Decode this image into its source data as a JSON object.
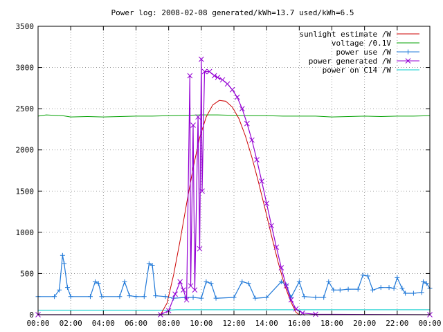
{
  "chart_data": {
    "type": "line",
    "title": "Power log: 2008-02-08 generated/kWh=13.7 used/kWh=6.5",
    "xlabel": "",
    "ylabel": "",
    "xlim": [
      "00:00",
      "24:00"
    ],
    "ylim": [
      0,
      3500
    ],
    "x_ticks": [
      "00:00",
      "02:00",
      "04:00",
      "06:00",
      "08:00",
      "10:00",
      "12:00",
      "14:00",
      "16:00",
      "18:00",
      "20:00",
      "22:00",
      "00:00"
    ],
    "y_ticks": [
      "0",
      "500",
      "1000",
      "1500",
      "2000",
      "2500",
      "3000",
      "3500"
    ],
    "grid": true,
    "legend_position": "top-right",
    "series": [
      {
        "name": "sunlight estimate /W",
        "color": "#cc0000",
        "marker": "none",
        "points": [
          [
            0,
            0
          ],
          [
            7.5,
            0
          ],
          [
            7.9,
            140
          ],
          [
            8.3,
            480
          ],
          [
            8.7,
            900
          ],
          [
            9.1,
            1350
          ],
          [
            9.5,
            1780
          ],
          [
            9.9,
            2150
          ],
          [
            10.3,
            2400
          ],
          [
            10.7,
            2545
          ],
          [
            11.1,
            2600
          ],
          [
            11.5,
            2590
          ],
          [
            11.9,
            2520
          ],
          [
            12.3,
            2380
          ],
          [
            12.7,
            2170
          ],
          [
            13.1,
            1910
          ],
          [
            13.5,
            1610
          ],
          [
            13.9,
            1290
          ],
          [
            14.3,
            960
          ],
          [
            14.7,
            640
          ],
          [
            15.1,
            360
          ],
          [
            15.5,
            150
          ],
          [
            15.8,
            30
          ],
          [
            16.0,
            0
          ],
          [
            24,
            0
          ]
        ]
      },
      {
        "name": "voltage /0.1V",
        "color": "#00a000",
        "marker": "none",
        "points": [
          [
            0,
            2410
          ],
          [
            0.5,
            2425
          ],
          [
            1.0,
            2420
          ],
          [
            1.5,
            2415
          ],
          [
            2.0,
            2400
          ],
          [
            3.0,
            2405
          ],
          [
            4.0,
            2400
          ],
          [
            5.0,
            2405
          ],
          [
            6.0,
            2410
          ],
          [
            7.0,
            2410
          ],
          [
            8.0,
            2415
          ],
          [
            9.0,
            2420
          ],
          [
            10.0,
            2425
          ],
          [
            11.0,
            2425
          ],
          [
            12.0,
            2420
          ],
          [
            13.0,
            2415
          ],
          [
            14.0,
            2415
          ],
          [
            15.0,
            2410
          ],
          [
            16.0,
            2410
          ],
          [
            17.0,
            2410
          ],
          [
            18.0,
            2400
          ],
          [
            19.0,
            2405
          ],
          [
            20.0,
            2410
          ],
          [
            21.0,
            2405
          ],
          [
            22.0,
            2410
          ],
          [
            23.0,
            2410
          ],
          [
            24.0,
            2415
          ]
        ]
      },
      {
        "name": "power use /W",
        "color": "#1f78d8",
        "marker": "plus",
        "points": [
          [
            0,
            220
          ],
          [
            1.0,
            220
          ],
          [
            1.3,
            300
          ],
          [
            1.5,
            720
          ],
          [
            1.6,
            620
          ],
          [
            1.8,
            330
          ],
          [
            2.0,
            220
          ],
          [
            3.2,
            220
          ],
          [
            3.5,
            400
          ],
          [
            3.7,
            380
          ],
          [
            3.9,
            220
          ],
          [
            5.0,
            220
          ],
          [
            5.3,
            400
          ],
          [
            5.6,
            230
          ],
          [
            6.0,
            220
          ],
          [
            6.5,
            220
          ],
          [
            6.8,
            620
          ],
          [
            7.0,
            600
          ],
          [
            7.2,
            230
          ],
          [
            7.8,
            220
          ],
          [
            8.3,
            200
          ],
          [
            9.0,
            210
          ],
          [
            9.5,
            210
          ],
          [
            10.0,
            200
          ],
          [
            10.3,
            400
          ],
          [
            10.6,
            380
          ],
          [
            10.9,
            200
          ],
          [
            12.0,
            210
          ],
          [
            12.5,
            400
          ],
          [
            12.9,
            380
          ],
          [
            13.3,
            200
          ],
          [
            14.0,
            210
          ],
          [
            14.9,
            400
          ],
          [
            15.2,
            360
          ],
          [
            15.5,
            210
          ],
          [
            16.0,
            400
          ],
          [
            16.3,
            220
          ],
          [
            17.0,
            210
          ],
          [
            17.5,
            210
          ],
          [
            17.8,
            400
          ],
          [
            18.1,
            300
          ],
          [
            18.5,
            300
          ],
          [
            19.0,
            310
          ],
          [
            19.6,
            310
          ],
          [
            19.9,
            480
          ],
          [
            20.2,
            470
          ],
          [
            20.5,
            300
          ],
          [
            21.0,
            330
          ],
          [
            21.5,
            330
          ],
          [
            21.8,
            320
          ],
          [
            22.0,
            450
          ],
          [
            22.3,
            320
          ],
          [
            22.5,
            260
          ],
          [
            23.0,
            260
          ],
          [
            23.5,
            270
          ],
          [
            23.6,
            400
          ],
          [
            23.8,
            380
          ],
          [
            24.0,
            320
          ]
        ]
      },
      {
        "name": "power generated /W",
        "color": "#9400d3",
        "marker": "cross",
        "points": [
          [
            0,
            0
          ],
          [
            7.5,
            0
          ],
          [
            8.0,
            50
          ],
          [
            8.4,
            250
          ],
          [
            8.7,
            400
          ],
          [
            8.9,
            300
          ],
          [
            9.1,
            180
          ],
          [
            9.3,
            2900
          ],
          [
            9.35,
            350
          ],
          [
            9.5,
            2300
          ],
          [
            9.6,
            300
          ],
          [
            9.8,
            2400
          ],
          [
            9.9,
            800
          ],
          [
            10.0,
            3100
          ],
          [
            10.05,
            1500
          ],
          [
            10.2,
            2950
          ],
          [
            10.5,
            2950
          ],
          [
            10.8,
            2900
          ],
          [
            11.0,
            2880
          ],
          [
            11.3,
            2850
          ],
          [
            11.6,
            2800
          ],
          [
            11.9,
            2730
          ],
          [
            12.2,
            2640
          ],
          [
            12.5,
            2500
          ],
          [
            12.8,
            2320
          ],
          [
            13.1,
            2120
          ],
          [
            13.4,
            1880
          ],
          [
            13.7,
            1620
          ],
          [
            14.0,
            1350
          ],
          [
            14.3,
            1080
          ],
          [
            14.6,
            820
          ],
          [
            14.9,
            570
          ],
          [
            15.2,
            350
          ],
          [
            15.5,
            180
          ],
          [
            15.8,
            70
          ],
          [
            16.2,
            20
          ],
          [
            17.0,
            5
          ],
          [
            24,
            0
          ]
        ]
      },
      {
        "name": "power on C14 /W",
        "color": "#00cccc",
        "marker": "none",
        "points": [
          [
            0,
            55
          ],
          [
            8.0,
            55
          ],
          [
            8.5,
            60
          ],
          [
            16.0,
            60
          ],
          [
            24,
            60
          ]
        ]
      }
    ]
  }
}
